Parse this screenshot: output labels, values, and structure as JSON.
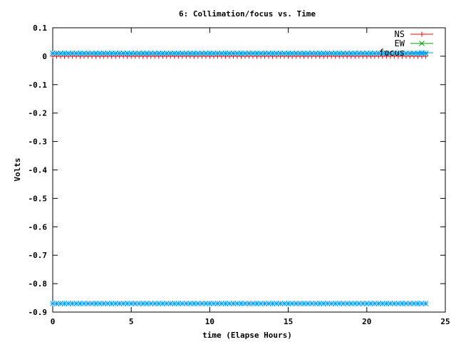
{
  "chart_data": {
    "type": "line",
    "title": "6: Collimation/focus vs. Time",
    "xlabel": "time (Elapse Hours)",
    "ylabel": "Volts",
    "xlim": [
      0,
      25
    ],
    "ylim": [
      -0.9,
      0.1
    ],
    "xticks": [
      0,
      5,
      10,
      15,
      20,
      25
    ],
    "xtick_labels": [
      "0",
      "5",
      "10",
      "15",
      "20",
      "25"
    ],
    "yticks": [
      0.1,
      0,
      -0.1,
      -0.2,
      -0.3,
      -0.4,
      -0.5,
      -0.6,
      -0.7,
      -0.8,
      -0.9
    ],
    "ytick_labels": [
      "0.1",
      "0",
      "-0.1",
      "-0.2",
      "-0.3",
      "-0.4",
      "-0.5",
      "-0.6",
      "-0.7",
      "-0.8",
      "-0.9"
    ],
    "grid": false,
    "legend_position": "top-right",
    "x_start": 0,
    "x_end": 23.8,
    "point_step": 0.25,
    "series": [
      {
        "name": "NS",
        "constant_value": 0.0,
        "color": "#ff0000",
        "marker": "plus"
      },
      {
        "name": "EW",
        "constant_value": 0.01,
        "color": "#00a000",
        "marker": "cross"
      },
      {
        "name": "focus",
        "constant_value": -0.87,
        "color": "#00a0ff",
        "marker": "star",
        "extra_constant_value": 0.01
      }
    ]
  }
}
